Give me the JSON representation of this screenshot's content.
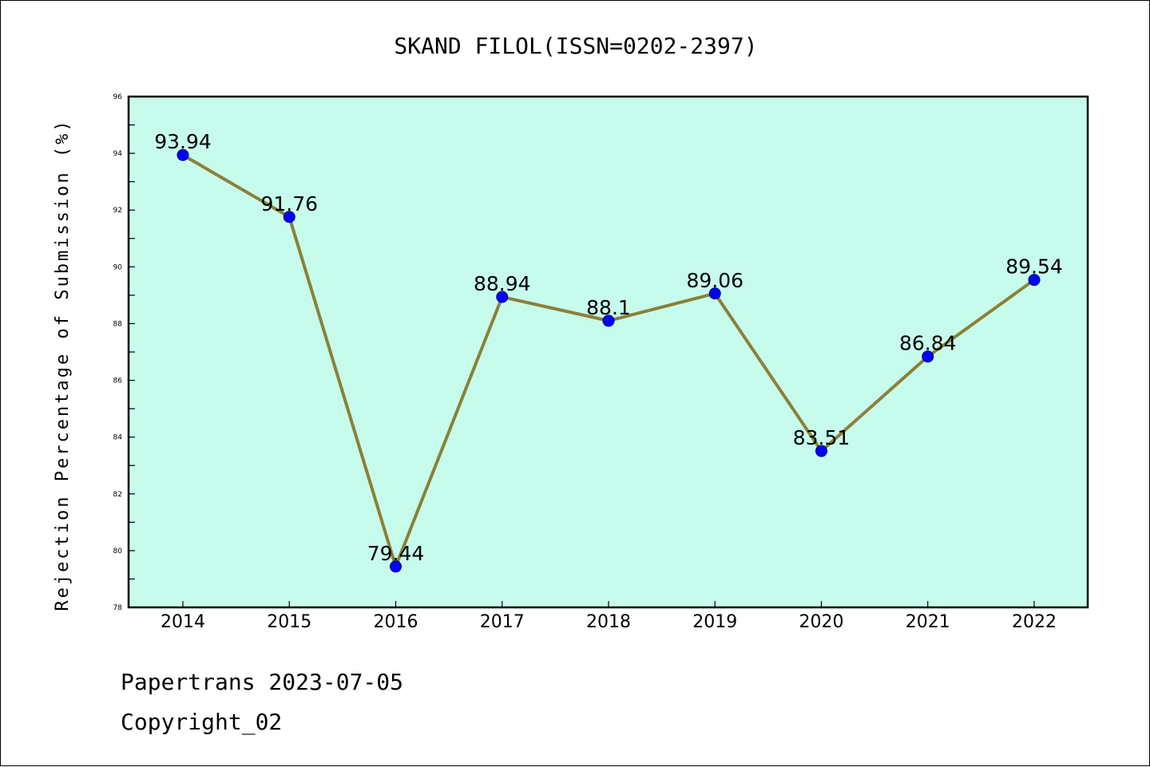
{
  "chart_data": {
    "type": "line",
    "title": "SKAND FILOL(ISSN=0202-2397)",
    "xlabel": "",
    "ylabel": "Rejection Percentage of Submission (%)",
    "categories": [
      "2014",
      "2015",
      "2016",
      "2017",
      "2018",
      "2019",
      "2020",
      "2021",
      "2022"
    ],
    "series": [
      {
        "values": [
          93.94,
          91.76,
          79.44,
          88.94,
          88.1,
          89.06,
          83.51,
          86.84,
          89.54
        ],
        "labels": [
          "93.94",
          "91.76",
          "79.44",
          "88.94",
          "88.1",
          "89.06",
          "83.51",
          "86.84",
          "89.54"
        ]
      }
    ],
    "ylim": [
      78,
      96
    ],
    "yticks": [
      "78",
      "80",
      "82",
      "84",
      "86",
      "88",
      "90",
      "92",
      "94",
      "96"
    ],
    "grid": false,
    "legend": "none",
    "colors": {
      "plot_background": "#c7fcec",
      "line": "#8b8038",
      "marker": "#0000ff"
    }
  },
  "footer": {
    "line1": "Papertrans 2023-07-05",
    "line2": "Copyright_02"
  }
}
